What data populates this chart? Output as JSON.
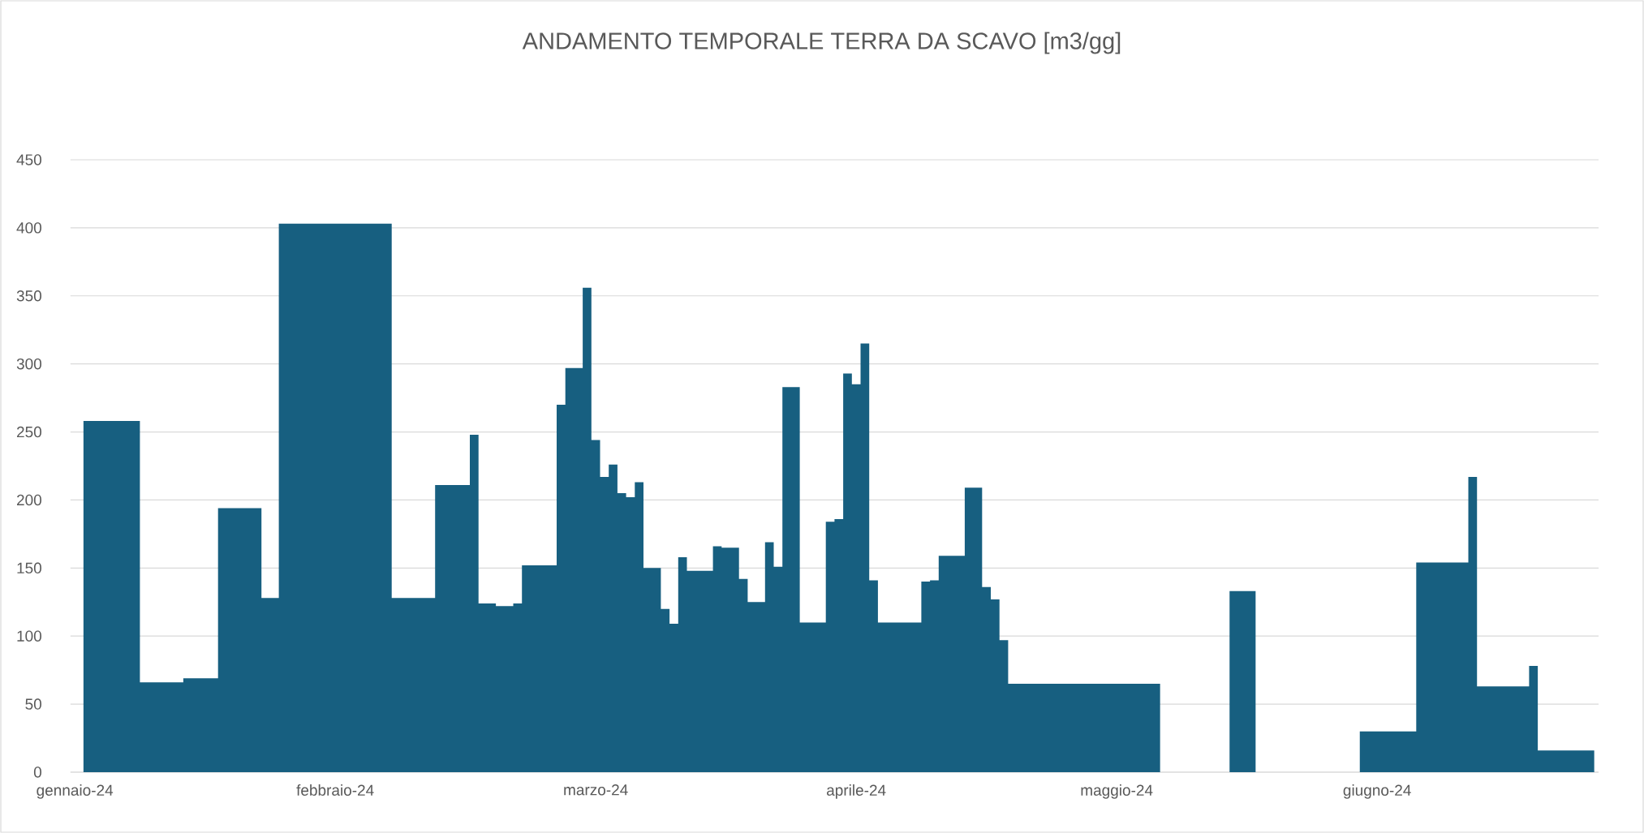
{
  "chart_data": {
    "type": "area",
    "title": "ANDAMENTO TEMPORALE TERRA DA SCAVO [m3/gg]",
    "categories": [
      "gennaio-24",
      null,
      null,
      null,
      null,
      null,
      null,
      null,
      null,
      null,
      null,
      null,
      null,
      null,
      null,
      null,
      null,
      null,
      null,
      null,
      null,
      null,
      null,
      null,
      null,
      null,
      null,
      null,
      null,
      null,
      "febbraio-24",
      null,
      null,
      null,
      null,
      null,
      null,
      null,
      null,
      null,
      null,
      null,
      null,
      null,
      null,
      null,
      null,
      null,
      null,
      null,
      null,
      null,
      null,
      null,
      null,
      null,
      null,
      null,
      null,
      null,
      "marzo-24",
      null,
      null,
      null,
      null,
      null,
      null,
      null,
      null,
      null,
      null,
      null,
      null,
      null,
      null,
      null,
      null,
      null,
      null,
      null,
      null,
      null,
      null,
      null,
      null,
      null,
      null,
      null,
      null,
      null,
      "aprile-24",
      null,
      null,
      null,
      null,
      null,
      null,
      null,
      null,
      null,
      null,
      null,
      null,
      null,
      null,
      null,
      null,
      null,
      null,
      null,
      null,
      null,
      null,
      null,
      null,
      null,
      null,
      null,
      null,
      null,
      "maggio-24",
      null,
      null,
      null,
      null,
      null,
      null,
      null,
      null,
      null,
      null,
      null,
      null,
      null,
      null,
      null,
      null,
      null,
      null,
      null,
      null,
      null,
      null,
      null,
      null,
      null,
      null,
      null,
      null,
      null,
      "giugno-24",
      null,
      null,
      null,
      null,
      null,
      null,
      null,
      null,
      null,
      null,
      null,
      null,
      null,
      null,
      null,
      null,
      null,
      null,
      null,
      null,
      null,
      null,
      null,
      null,
      null
    ],
    "values": [
      null,
      258,
      258,
      258,
      258,
      258,
      258,
      258,
      66,
      66,
      66,
      66,
      66,
      69,
      69,
      69,
      69,
      194,
      194,
      194,
      194,
      194,
      128,
      128,
      403,
      403,
      403,
      403,
      403,
      403,
      403,
      403,
      403,
      403,
      403,
      403,
      403,
      128,
      128,
      128,
      128,
      128,
      211,
      211,
      211,
      211,
      248,
      124,
      124,
      122,
      122,
      124,
      152,
      152,
      152,
      152,
      270,
      297,
      297,
      356,
      244,
      217,
      226,
      205,
      202,
      213,
      150,
      150,
      120,
      109,
      158,
      148,
      148,
      148,
      166,
      165,
      165,
      142,
      125,
      125,
      169,
      151,
      283,
      283,
      110,
      110,
      110,
      184,
      186,
      293,
      285,
      315,
      141,
      110,
      110,
      110,
      110,
      110,
      140,
      141,
      159,
      159,
      159,
      209,
      209,
      136,
      127,
      97,
      65,
      65,
      65,
      65,
      65,
      65,
      65,
      65,
      65,
      65,
      65,
      65,
      65,
      65,
      65,
      65,
      65,
      65,
      null,
      null,
      null,
      null,
      null,
      null,
      null,
      133,
      133,
      133,
      133,
      null,
      null,
      null,
      null,
      null,
      null,
      null,
      null,
      null,
      null,
      null,
      30,
      30,
      30,
      30,
      30,
      30,
      30,
      154,
      154,
      154,
      154,
      154,
      154,
      217,
      63,
      63,
      63,
      63,
      63,
      63,
      78,
      16,
      16,
      16,
      16,
      16,
      16,
      16
    ],
    "color": "#175f80",
    "ylim": [
      0,
      450
    ],
    "yticks": [
      0,
      50,
      100,
      150,
      200,
      250,
      300,
      350,
      400,
      450
    ],
    "grid": "y"
  }
}
